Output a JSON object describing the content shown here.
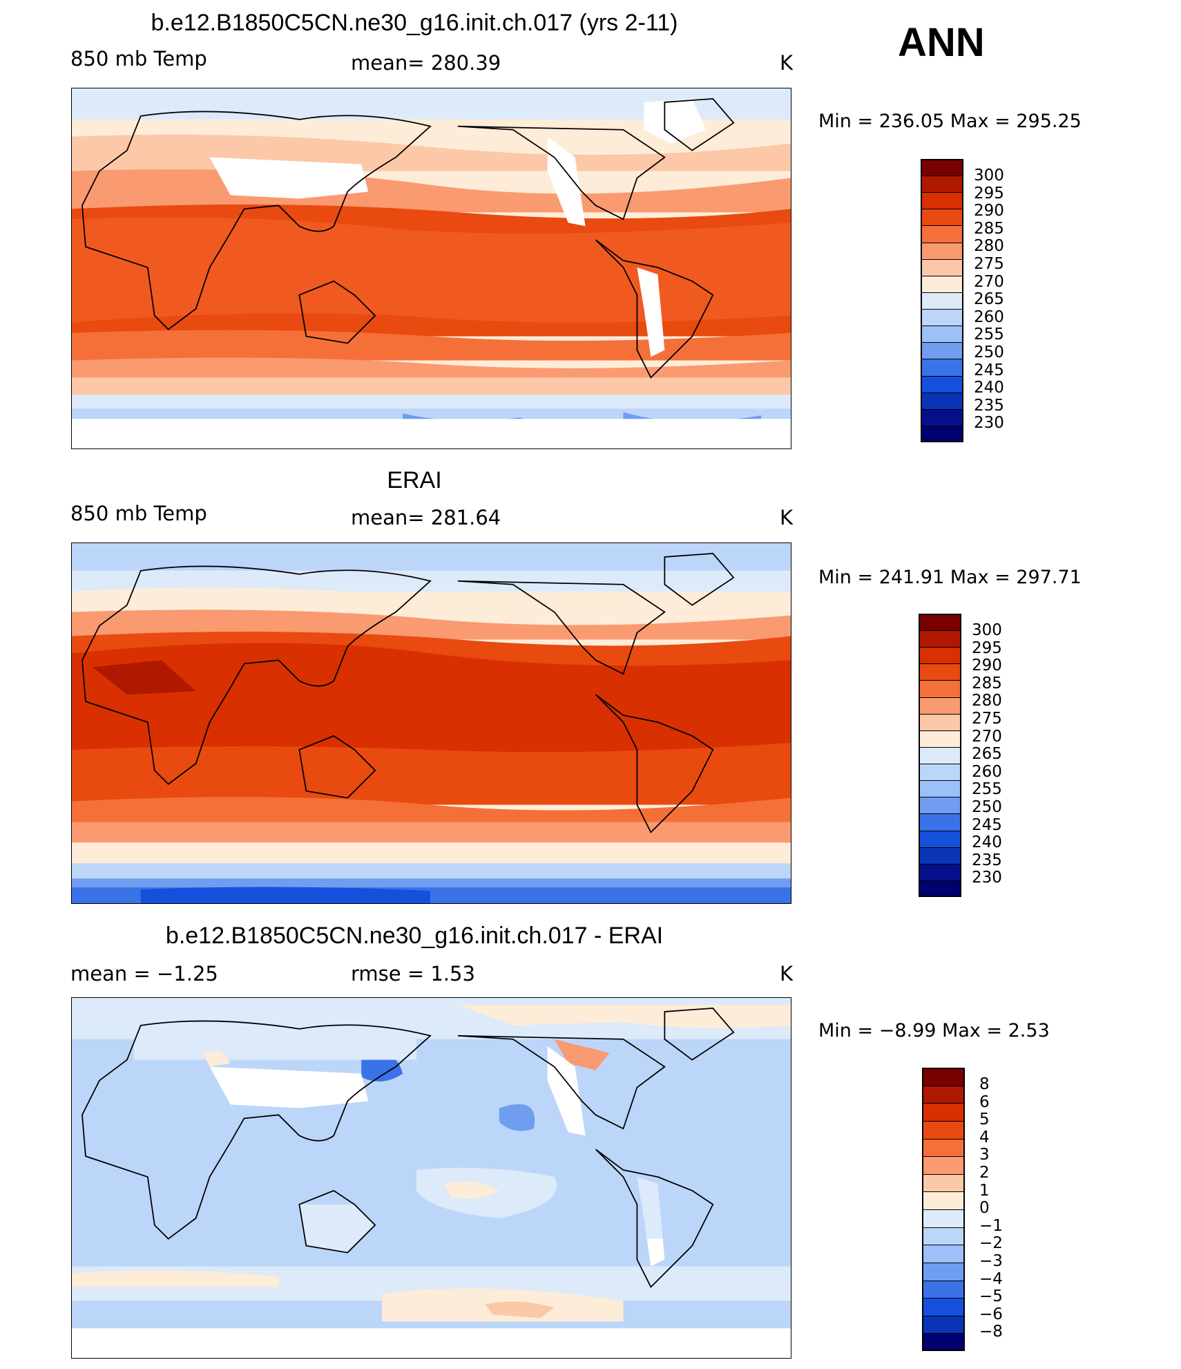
{
  "header": {
    "season": "ANN"
  },
  "panels": [
    {
      "title": "b.e12.B1850C5CN.ne30_g16.init.ch.017 (yrs 2-11)",
      "left_label": "850 mb Temp",
      "center_label": "mean=  280.39",
      "units": "K",
      "minmax": "Min  =  236.05  Max  =  295.25",
      "colorbar_ticks": [
        "300",
        "295",
        "290",
        "285",
        "280",
        "275",
        "270",
        "265",
        "260",
        "255",
        "250",
        "245",
        "240",
        "235",
        "230"
      ]
    },
    {
      "title": "ERAI",
      "left_label": "850 mb Temp",
      "center_label": "mean=  281.64",
      "units": "K",
      "minmax": "Min  =  241.91  Max  =  297.71",
      "colorbar_ticks": [
        "300",
        "295",
        "290",
        "285",
        "280",
        "275",
        "270",
        "265",
        "260",
        "255",
        "250",
        "245",
        "240",
        "235",
        "230"
      ]
    },
    {
      "title": "b.e12.B1850C5CN.ne30_g16.init.ch.017 - ERAI",
      "left_label": "mean =    −1.25",
      "center_label": "rmse =      1.53",
      "units": "K",
      "minmax": "Min  =    −8.99  Max  =      2.53",
      "colorbar_ticks": [
        "8",
        "6",
        "5",
        "4",
        "3",
        "2",
        "1",
        "0",
        "−1",
        "−2",
        "−3",
        "−4",
        "−5",
        "−6",
        "−8"
      ]
    }
  ],
  "colors": {
    "abs_scale": [
      "#7a0000",
      "#b01800",
      "#d83000",
      "#e84a10",
      "#f57038",
      "#f99a70",
      "#fcc8a8",
      "#fdecd8",
      "#dceafa",
      "#bcd6fa",
      "#9cc0f8",
      "#6f9ef0",
      "#3a72e8",
      "#1550dc",
      "#0a34b8",
      "#040f8a",
      "#000070"
    ],
    "diff_scale": [
      "#7a0000",
      "#b01800",
      "#d83000",
      "#e84a10",
      "#f57038",
      "#f99a70",
      "#fcc8a8",
      "#fdecd8",
      "#dceafa",
      "#bcd6fa",
      "#9cc0f8",
      "#6f9ef0",
      "#3a72e8",
      "#1550dc",
      "#0a34b8",
      "#000070"
    ],
    "land_outline": "#000000"
  }
}
